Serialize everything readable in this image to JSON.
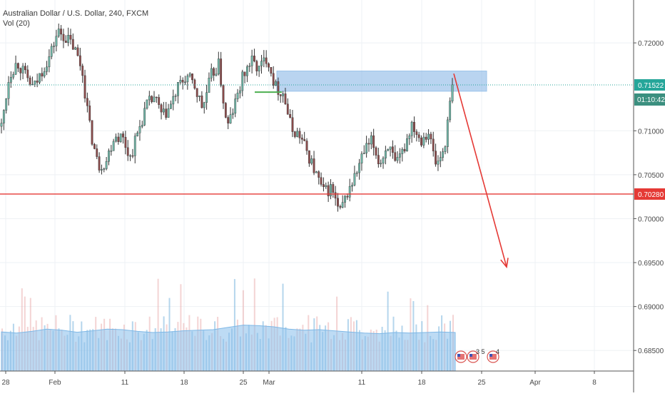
{
  "chart_data": {
    "type": "candlestick",
    "symbol": "Australian Dollar / U.S. Dollar, 240, FXCM",
    "volume_label": "Vol (20)",
    "y_ticks": [
      "0.72000",
      "0.71000",
      "0.70500",
      "0.70000",
      "0.69500",
      "0.69000",
      "0.68500"
    ],
    "y_tick_values": [
      0.72,
      0.71,
      0.705,
      0.7,
      0.695,
      0.69,
      0.685
    ],
    "ylim": [
      0.6825,
      0.7235
    ],
    "x_ticks": [
      "28",
      "Feb",
      "11",
      "18",
      "25",
      "Mar",
      "11",
      "18",
      "25",
      "Apr",
      "8"
    ],
    "last_price": {
      "value": 0.71522,
      "label": "0.71522",
      "color": "#26a69a"
    },
    "countdown": "01:10:42",
    "support_level": {
      "value": 0.7028,
      "label": "0.70280",
      "color": "#e53935"
    },
    "resistance_zone": {
      "low": 0.7145,
      "high": 0.7168,
      "color": "#7fb0e3"
    },
    "projection": {
      "from": 0.7165,
      "to": 0.6945,
      "color": "#e53935"
    },
    "green_marker_level": 0.7144,
    "close_path": [
      0.7105,
      0.7165,
      0.7178,
      0.7162,
      0.7148,
      0.7168,
      0.7185,
      0.7213,
      0.7206,
      0.7195,
      0.717,
      0.7102,
      0.706,
      0.7065,
      0.7095,
      0.7093,
      0.707,
      0.71,
      0.7128,
      0.7138,
      0.7115,
      0.7128,
      0.715,
      0.7162,
      0.715,
      0.7125,
      0.7162,
      0.7175,
      0.7102,
      0.713,
      0.7162,
      0.718,
      0.717,
      0.7185,
      0.715,
      0.7143,
      0.7102,
      0.7095,
      0.7075,
      0.7052,
      0.703,
      0.7035,
      0.7005,
      0.703,
      0.705,
      0.7075,
      0.7088,
      0.7062,
      0.7085,
      0.7058,
      0.708,
      0.711,
      0.709,
      0.71,
      0.706,
      0.708,
      0.715
    ],
    "volume_profile": [
      0.62,
      0.58,
      0.64,
      0.72,
      0.68,
      0.61,
      0.66,
      0.72,
      0.7,
      0.64,
      0.6,
      0.62,
      0.66,
      0.68,
      0.7,
      0.78,
      0.86,
      0.84,
      0.8,
      0.72,
      0.68,
      0.7,
      0.66,
      0.62,
      0.58,
      0.56,
      0.6,
      0.58,
      0.6,
      0.62,
      0.6
    ],
    "events": [
      {
        "kind": "flag",
        "label": ""
      },
      {
        "kind": "flag",
        "label": "3 5"
      },
      {
        "kind": "flag",
        "label": "4"
      }
    ]
  }
}
